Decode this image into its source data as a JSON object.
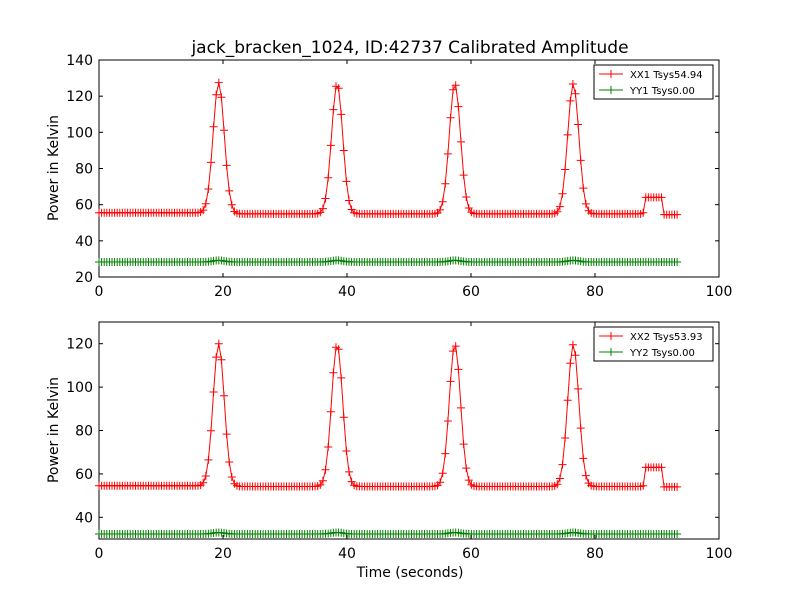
{
  "figure": {
    "title": "jack_bracken_1024, ID:42737 Calibrated Amplitude"
  },
  "chart_data": [
    {
      "type": "line",
      "title": "jack_bracken_1024, ID:42737 Calibrated Amplitude",
      "xlabel": "",
      "ylabel": "Power in Kelvin",
      "xlim": [
        0,
        100
      ],
      "ylim": [
        20,
        140
      ],
      "xticks": [
        "0",
        "20",
        "40",
        "60",
        "80",
        "100"
      ],
      "yticks": [
        "20",
        "40",
        "60",
        "80",
        "100",
        "120",
        "140"
      ],
      "xtick_values": [
        0,
        20,
        40,
        60,
        80,
        100
      ],
      "ytick_values": [
        20,
        40,
        60,
        80,
        100,
        120,
        140
      ],
      "grid": false,
      "legend_position": "top-right",
      "marker": "+",
      "series": [
        {
          "name": "XX1 Tsys54.94",
          "color": "#ff0000",
          "baseline": 55.5,
          "peaks": [
            {
              "center": 19.3,
              "value": 127.5
            },
            {
              "center": 38.4,
              "value": 127.5
            },
            {
              "center": 57.4,
              "value": 127.5
            },
            {
              "center": 76.5,
              "value": 127.5
            }
          ],
          "dip_after_peak": 54.5,
          "step": {
            "start": 88.0,
            "end": 91.0,
            "value": 64.0
          },
          "tail_value": 54.5,
          "x_range": [
            0,
            93.5
          ]
        },
        {
          "name": "YY1 Tsys0.00",
          "color": "#008000",
          "baseline": 28.3,
          "peaks": [
            {
              "center": 19.3,
              "value": 29.2
            },
            {
              "center": 38.4,
              "value": 29.2
            },
            {
              "center": 57.4,
              "value": 29.2
            },
            {
              "center": 76.5,
              "value": 29.2
            }
          ],
          "x_range": [
            0,
            93.5
          ]
        }
      ]
    },
    {
      "type": "line",
      "title": "",
      "xlabel": "Time (seconds)",
      "ylabel": "Power in Kelvin",
      "xlim": [
        0,
        100
      ],
      "ylim": [
        30,
        130
      ],
      "xticks": [
        "0",
        "20",
        "40",
        "60",
        "80",
        "100"
      ],
      "yticks": [
        "40",
        "60",
        "80",
        "100",
        "120"
      ],
      "xtick_values": [
        0,
        20,
        40,
        60,
        80,
        100
      ],
      "ytick_values": [
        40,
        60,
        80,
        100,
        120
      ],
      "grid": false,
      "legend_position": "top-right",
      "marker": "+",
      "series": [
        {
          "name": "XX2 Tsys53.93",
          "color": "#ff0000",
          "baseline": 54.5,
          "peaks": [
            {
              "center": 19.3,
              "value": 120.0
            },
            {
              "center": 38.4,
              "value": 120.0
            },
            {
              "center": 57.4,
              "value": 120.0
            },
            {
              "center": 76.5,
              "value": 120.0
            }
          ],
          "dip_after_peak": 54.0,
          "step": {
            "start": 88.0,
            "end": 91.0,
            "value": 63.0
          },
          "tail_value": 54.0,
          "x_range": [
            0,
            93.5
          ]
        },
        {
          "name": "YY2 Tsys0.00",
          "color": "#008000",
          "baseline": 32.3,
          "peaks": [
            {
              "center": 19.3,
              "value": 33.0
            },
            {
              "center": 38.4,
              "value": 33.0
            },
            {
              "center": 57.4,
              "value": 33.0
            },
            {
              "center": 76.5,
              "value": 33.0
            }
          ],
          "x_range": [
            0,
            93.5
          ]
        }
      ]
    }
  ]
}
